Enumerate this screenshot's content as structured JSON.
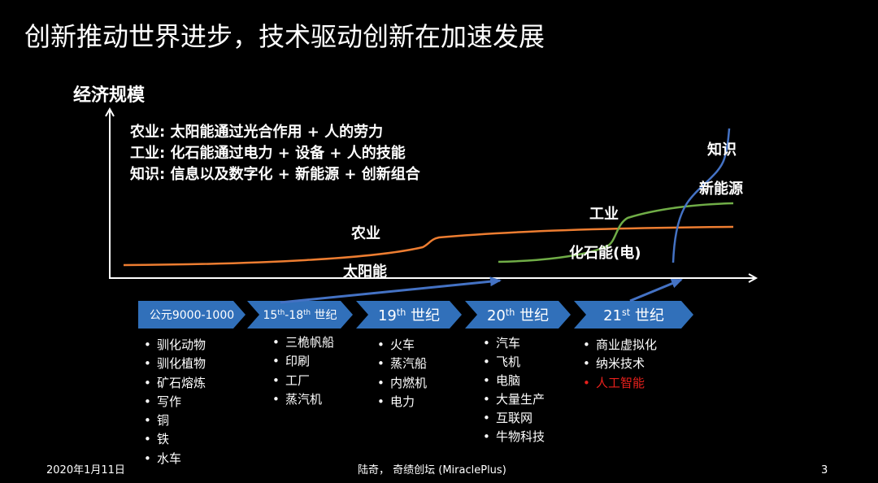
{
  "slide": {
    "title": "创新推动世界进步，技术驱动创新在加速发展",
    "y_axis_label": "经济规模",
    "definitions": [
      "农业: 太阳能通过光合作用 + 人的劳力",
      "工业: 化石能通过电力 + 设备 + 人的技能",
      "知识: 信息以及数字化 + 新能源 + 创新组合"
    ],
    "curves": [
      {
        "label": "农业",
        "energy_label": "太阳能",
        "color": "#ED7D31"
      },
      {
        "label": "工业",
        "energy_label": "化石能(电)",
        "color": "#70AD47"
      },
      {
        "label": "知识",
        "energy_label": "新能源",
        "color": "#4472C4"
      }
    ],
    "eras": [
      {
        "label_parts": [
          "公元9000-1000"
        ],
        "items": [
          "驯化动物",
          "驯化植物",
          "矿石熔炼",
          "写作",
          "铜",
          "铁",
          "水车"
        ]
      },
      {
        "label_parts": [
          "15",
          "th",
          "-18",
          "th",
          " 世纪"
        ],
        "items": [
          "三桅帆船",
          "印刷",
          "工厂",
          "蒸汽机"
        ]
      },
      {
        "label_parts": [
          "19",
          "th",
          " 世纪"
        ],
        "items": [
          "火车",
          "蒸汽船",
          "内燃机",
          "电力"
        ]
      },
      {
        "label_parts": [
          "20",
          "th",
          " 世纪"
        ],
        "items": [
          "汽车",
          "飞机",
          "电脑",
          "大量生产",
          "互联网",
          "牛物科技"
        ]
      },
      {
        "label_parts": [
          "21",
          "st",
          " 世纪"
        ],
        "items": [
          "商业虚拟化",
          "纳米技术",
          "人工智能"
        ],
        "highlight_index": 2
      }
    ]
  },
  "footer": {
    "date": "2020年1月11日",
    "author": "陆奇， 奇绩创坛 (MiraclePlus)",
    "page_number": "3"
  },
  "colors": {
    "background": "#000000",
    "text": "#FFFFFF",
    "chevron": "#3170BA",
    "timeline_arrow": "#4472C4",
    "highlight": "#E8201C"
  }
}
